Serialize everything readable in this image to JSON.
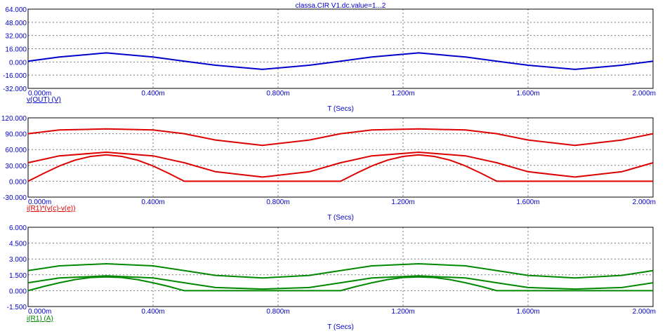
{
  "window_title": "classa.CIR V1.dc.value=1...2",
  "chart_data": [
    {
      "type": "line",
      "xlabel": "T (Secs)",
      "xlim": [
        0,
        2.0
      ],
      "x_ticks": [
        "0.000m",
        "0.400m",
        "0.800m",
        "1.200m",
        "1.600m",
        "2.000m"
      ],
      "ylim": [
        -32,
        64
      ],
      "y_ticks": [
        "64.000",
        "48.000",
        "32.000",
        "16.000",
        "0.000",
        "-16.000",
        "-32.000"
      ],
      "ylabel": "v(OUT) (V)",
      "color": "#0000cc",
      "grid": true,
      "series": [
        {
          "x": [
            0,
            0.1,
            0.25,
            0.4,
            0.5,
            0.6,
            0.75,
            0.9,
            1.0,
            1.1,
            1.25,
            1.4,
            1.5,
            1.6,
            1.75,
            1.9,
            2.0
          ],
          "values": [
            1,
            6,
            11,
            6,
            1,
            -4,
            -9,
            -4,
            1,
            6,
            11,
            6,
            1,
            -4,
            -9,
            -4,
            1
          ]
        }
      ]
    },
    {
      "type": "line",
      "xlabel": "T (Secs)",
      "xlim": [
        0,
        2.0
      ],
      "x_ticks": [
        "0.000m",
        "0.400m",
        "0.800m",
        "1.200m",
        "1.600m",
        "2.000m"
      ],
      "ylim": [
        -30,
        120
      ],
      "y_ticks": [
        "120.000",
        "90.000",
        "60.000",
        "30.000",
        "0.000",
        "-30.000"
      ],
      "ylabel": "i(R1)*(v(c)-v(e))",
      "color": "#dd0000",
      "grid": true,
      "series": [
        {
          "x": [
            0,
            0.1,
            0.25,
            0.4,
            0.5,
            0.6,
            0.75,
            0.9,
            1.0,
            1.1,
            1.25,
            1.4,
            1.5,
            1.6,
            1.75,
            1.9,
            2.0
          ],
          "values": [
            90,
            97,
            99,
            97,
            90,
            78,
            68,
            78,
            90,
            97,
            99,
            97,
            90,
            78,
            68,
            78,
            90
          ]
        },
        {
          "x": [
            0,
            0.1,
            0.25,
            0.4,
            0.5,
            0.6,
            0.75,
            0.9,
            1.0,
            1.1,
            1.25,
            1.4,
            1.5,
            1.6,
            1.75,
            1.9,
            2.0
          ],
          "values": [
            35,
            48,
            55,
            48,
            35,
            18,
            8,
            18,
            35,
            48,
            55,
            48,
            35,
            18,
            8,
            18,
            35
          ]
        },
        {
          "x": [
            0,
            0.05,
            0.1,
            0.15,
            0.2,
            0.25,
            0.3,
            0.35,
            0.4,
            0.45,
            0.5,
            1.0,
            1.05,
            1.1,
            1.15,
            1.2,
            1.25,
            1.3,
            1.35,
            1.4,
            1.45,
            1.5,
            2.0
          ],
          "values": [
            0,
            15,
            29,
            40,
            47,
            50,
            47,
            40,
            29,
            15,
            0,
            0,
            15,
            29,
            40,
            47,
            50,
            47,
            40,
            29,
            15,
            0,
            0
          ]
        }
      ]
    },
    {
      "type": "line",
      "xlabel": "T (Secs)",
      "xlim": [
        0,
        2.0
      ],
      "x_ticks": [
        "0.000m",
        "0.400m",
        "0.800m",
        "1.200m",
        "1.600m",
        "2.000m"
      ],
      "ylim": [
        -1.5,
        6.0
      ],
      "y_ticks": [
        "6.000",
        "4.500",
        "3.000",
        "1.500",
        "0.000",
        "-1.500"
      ],
      "ylabel": "i(R1) (A)",
      "color": "#008800",
      "grid": true,
      "series": [
        {
          "x": [
            0,
            0.1,
            0.25,
            0.4,
            0.5,
            0.6,
            0.75,
            0.9,
            1.0,
            1.1,
            1.25,
            1.4,
            1.5,
            1.6,
            1.75,
            1.9,
            2.0
          ],
          "values": [
            1.9,
            2.35,
            2.55,
            2.35,
            1.9,
            1.45,
            1.2,
            1.45,
            1.9,
            2.35,
            2.55,
            2.35,
            1.9,
            1.45,
            1.2,
            1.45,
            1.9
          ]
        },
        {
          "x": [
            0,
            0.1,
            0.25,
            0.4,
            0.5,
            0.6,
            0.75,
            0.9,
            1.0,
            1.1,
            1.25,
            1.4,
            1.5,
            1.6,
            1.75,
            1.9,
            2.0
          ],
          "values": [
            0.75,
            1.2,
            1.4,
            1.2,
            0.75,
            0.3,
            0.15,
            0.3,
            0.75,
            1.2,
            1.4,
            1.2,
            0.75,
            0.3,
            0.15,
            0.3,
            0.75
          ]
        },
        {
          "x": [
            0,
            0.05,
            0.1,
            0.15,
            0.2,
            0.25,
            0.3,
            0.35,
            0.4,
            0.45,
            0.5,
            1.0,
            1.05,
            1.1,
            1.15,
            1.2,
            1.25,
            1.3,
            1.35,
            1.4,
            1.45,
            1.5,
            2.0
          ],
          "values": [
            0,
            0.4,
            0.75,
            1.05,
            1.25,
            1.3,
            1.25,
            1.05,
            0.75,
            0.4,
            0,
            0,
            0.4,
            0.75,
            1.05,
            1.25,
            1.3,
            1.25,
            1.05,
            0.75,
            0.4,
            0,
            0
          ]
        }
      ]
    }
  ]
}
